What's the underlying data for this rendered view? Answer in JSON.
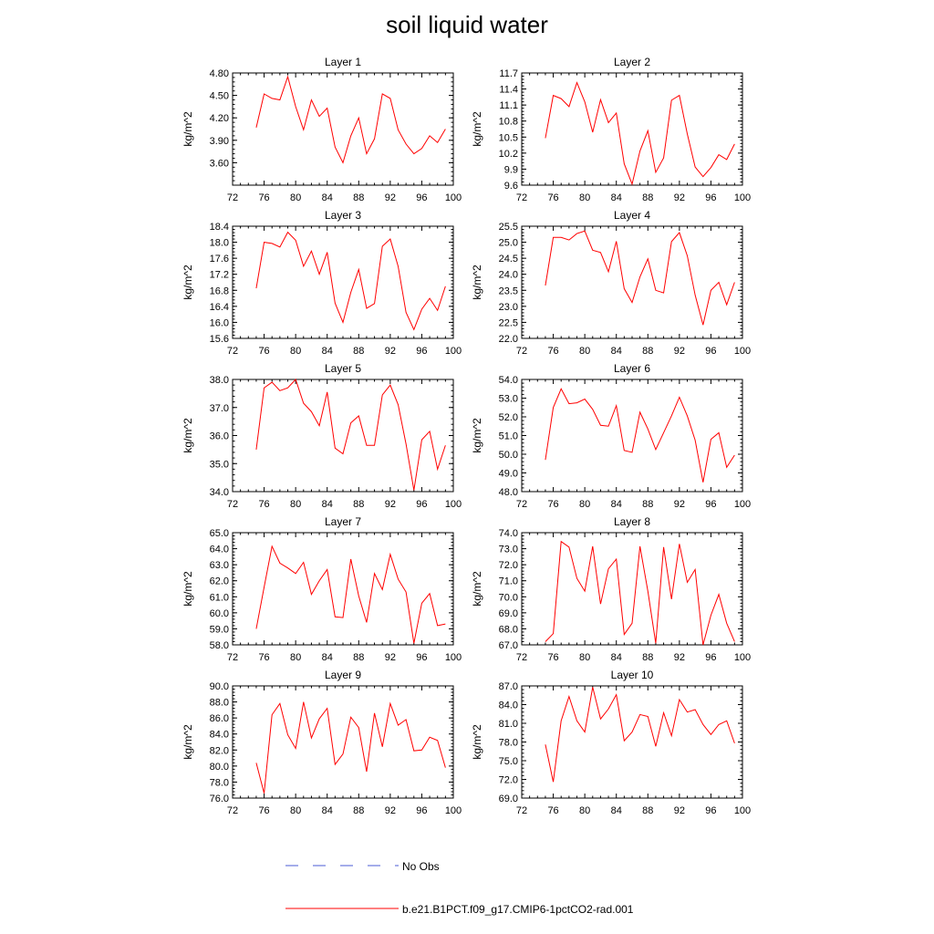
{
  "title": "soil liquid water",
  "legend": {
    "entries": [
      {
        "label": "No Obs",
        "color": "#4a5bd6",
        "style": "dashed"
      },
      {
        "label": "b.e21.B1PCT.f09_g17.CMIP6-1pctCO2-rad.001",
        "color": "#ff0000",
        "style": "solid"
      }
    ]
  },
  "colors": {
    "series": "#ff0000",
    "axis": "#000000"
  },
  "chart_data": [
    {
      "type": "line",
      "title": "Layer 1",
      "ylabel": "kg/m^2",
      "xlim": [
        72,
        100
      ],
      "xticks": [
        72,
        76,
        80,
        84,
        88,
        92,
        96,
        100
      ],
      "ylim": [
        3.3,
        4.8
      ],
      "yticks": [
        3.6,
        3.9,
        4.2,
        4.5,
        4.8
      ],
      "ydecimals": 2,
      "x": [
        75,
        76,
        77,
        78,
        79,
        80,
        81,
        82,
        83,
        84,
        85,
        86,
        87,
        88,
        89,
        90,
        91,
        92,
        93,
        94,
        95,
        96,
        97,
        98,
        99
      ],
      "series": [
        {
          "name": "b.e21.B1PCT.f09_g17.CMIP6-1pctCO2-rad.001",
          "values": [
            4.07,
            4.52,
            4.46,
            4.44,
            4.75,
            4.35,
            4.04,
            4.44,
            4.22,
            4.33,
            3.81,
            3.6,
            3.96,
            4.2,
            3.72,
            3.92,
            4.52,
            4.46,
            4.04,
            3.85,
            3.72,
            3.79,
            3.96,
            3.87,
            4.05
          ]
        }
      ]
    },
    {
      "type": "line",
      "title": "Layer 2",
      "ylabel": "kg/m^2",
      "xlim": [
        72,
        100
      ],
      "xticks": [
        72,
        76,
        80,
        84,
        88,
        92,
        96,
        100
      ],
      "ylim": [
        9.6,
        11.7
      ],
      "yticks": [
        9.6,
        9.9,
        10.2,
        10.5,
        10.8,
        11.1,
        11.4,
        11.7
      ],
      "ydecimals": 1,
      "x": [
        75,
        76,
        77,
        78,
        79,
        80,
        81,
        82,
        83,
        84,
        85,
        86,
        87,
        88,
        89,
        90,
        91,
        92,
        93,
        94,
        95,
        96,
        97,
        98,
        99
      ],
      "series": [
        {
          "name": "b.e21.B1PCT.f09_g17.CMIP6-1pctCO2-rad.001",
          "values": [
            10.48,
            11.28,
            11.22,
            11.07,
            11.52,
            11.16,
            10.59,
            11.2,
            10.77,
            10.95,
            10.0,
            9.62,
            10.24,
            10.62,
            9.84,
            10.11,
            11.19,
            11.28,
            10.56,
            9.94,
            9.76,
            9.93,
            10.17,
            10.08,
            10.37
          ]
        }
      ]
    },
    {
      "type": "line",
      "title": "Layer 3",
      "ylabel": "kg/m^2",
      "xlim": [
        72,
        100
      ],
      "xticks": [
        72,
        76,
        80,
        84,
        88,
        92,
        96,
        100
      ],
      "ylim": [
        15.6,
        18.4
      ],
      "yticks": [
        15.6,
        16.0,
        16.4,
        16.8,
        17.2,
        17.6,
        18.0,
        18.4
      ],
      "ydecimals": 1,
      "x": [
        75,
        76,
        77,
        78,
        79,
        80,
        81,
        82,
        83,
        84,
        85,
        86,
        87,
        88,
        89,
        90,
        91,
        92,
        93,
        94,
        95,
        96,
        97,
        98,
        99
      ],
      "series": [
        {
          "name": "b.e21.B1PCT.f09_g17.CMIP6-1pctCO2-rad.001",
          "values": [
            16.85,
            18.0,
            17.97,
            17.88,
            18.25,
            18.05,
            17.4,
            17.78,
            17.2,
            17.75,
            16.48,
            16.0,
            16.75,
            17.32,
            16.35,
            16.47,
            17.9,
            18.08,
            17.4,
            16.25,
            15.82,
            16.33,
            16.6,
            16.3,
            16.9
          ]
        }
      ]
    },
    {
      "type": "line",
      "title": "Layer 4",
      "ylabel": "kg/m^2",
      "xlim": [
        72,
        100
      ],
      "xticks": [
        72,
        76,
        80,
        84,
        88,
        92,
        96,
        100
      ],
      "ylim": [
        22.0,
        25.5
      ],
      "yticks": [
        22.0,
        22.5,
        23.0,
        23.5,
        24.0,
        24.5,
        25.0,
        25.5
      ],
      "ydecimals": 1,
      "x": [
        75,
        76,
        77,
        78,
        79,
        80,
        81,
        82,
        83,
        84,
        85,
        86,
        87,
        88,
        89,
        90,
        91,
        92,
        93,
        94,
        95,
        96,
        97,
        98,
        99
      ],
      "series": [
        {
          "name": "b.e21.B1PCT.f09_g17.CMIP6-1pctCO2-rad.001",
          "values": [
            23.65,
            25.15,
            25.15,
            25.07,
            25.27,
            25.35,
            24.75,
            24.68,
            24.08,
            25.03,
            23.55,
            23.12,
            23.92,
            24.48,
            23.5,
            23.42,
            25.02,
            25.3,
            24.58,
            23.35,
            22.42,
            23.5,
            23.75,
            23.05,
            23.75
          ]
        }
      ]
    },
    {
      "type": "line",
      "title": "Layer 5",
      "ylabel": "kg/m^2",
      "xlim": [
        72,
        100
      ],
      "xticks": [
        72,
        76,
        80,
        84,
        88,
        92,
        96,
        100
      ],
      "ylim": [
        34.0,
        38.0
      ],
      "yticks": [
        34.0,
        35.0,
        36.0,
        37.0,
        38.0
      ],
      "ydecimals": 1,
      "x": [
        75,
        76,
        77,
        78,
        79,
        80,
        81,
        82,
        83,
        84,
        85,
        86,
        87,
        88,
        89,
        90,
        91,
        92,
        93,
        94,
        95,
        96,
        97,
        98,
        99
      ],
      "series": [
        {
          "name": "b.e21.B1PCT.f09_g17.CMIP6-1pctCO2-rad.001",
          "values": [
            35.5,
            37.7,
            37.9,
            37.6,
            37.7,
            38.0,
            37.15,
            36.85,
            36.35,
            37.55,
            35.55,
            35.35,
            36.45,
            36.7,
            35.65,
            35.65,
            37.45,
            37.8,
            37.1,
            35.7,
            34.05,
            35.85,
            36.15,
            34.8,
            35.65
          ]
        }
      ]
    },
    {
      "type": "line",
      "title": "Layer 6",
      "ylabel": "kg/m^2",
      "xlim": [
        72,
        100
      ],
      "xticks": [
        72,
        76,
        80,
        84,
        88,
        92,
        96,
        100
      ],
      "ylim": [
        48.0,
        54.0
      ],
      "yticks": [
        48.0,
        49.0,
        50.0,
        51.0,
        52.0,
        53.0,
        54.0
      ],
      "ydecimals": 1,
      "x": [
        75,
        76,
        77,
        78,
        79,
        80,
        81,
        82,
        83,
        84,
        85,
        86,
        87,
        88,
        89,
        90,
        91,
        92,
        93,
        94,
        95,
        96,
        97,
        98,
        99
      ],
      "series": [
        {
          "name": "b.e21.B1PCT.f09_g17.CMIP6-1pctCO2-rad.001",
          "values": [
            49.7,
            52.5,
            53.5,
            52.7,
            52.75,
            52.95,
            52.4,
            51.55,
            51.5,
            52.6,
            50.2,
            50.1,
            52.25,
            51.35,
            50.25,
            51.15,
            52.05,
            53.05,
            52.05,
            50.75,
            48.5,
            50.8,
            51.15,
            49.3,
            49.95
          ]
        }
      ]
    },
    {
      "type": "line",
      "title": "Layer 7",
      "ylabel": "kg/m^2",
      "xlim": [
        72,
        100
      ],
      "xticks": [
        72,
        76,
        80,
        84,
        88,
        92,
        96,
        100
      ],
      "ylim": [
        58.0,
        65.0
      ],
      "yticks": [
        58.0,
        59.0,
        60.0,
        61.0,
        62.0,
        63.0,
        64.0,
        65.0
      ],
      "ydecimals": 1,
      "x": [
        75,
        76,
        77,
        78,
        79,
        80,
        81,
        82,
        83,
        84,
        85,
        86,
        87,
        88,
        89,
        90,
        91,
        92,
        93,
        94,
        95,
        96,
        97,
        98,
        99
      ],
      "series": [
        {
          "name": "b.e21.B1PCT.f09_g17.CMIP6-1pctCO2-rad.001",
          "values": [
            59.0,
            61.6,
            64.15,
            63.1,
            62.8,
            62.45,
            63.15,
            61.15,
            62.0,
            62.7,
            59.75,
            59.7,
            63.35,
            61.05,
            59.4,
            62.45,
            61.45,
            63.65,
            62.1,
            61.3,
            58.1,
            60.6,
            61.2,
            59.2,
            59.3
          ]
        }
      ]
    },
    {
      "type": "line",
      "title": "Layer 8",
      "ylabel": "kg/m^2",
      "xlim": [
        72,
        100
      ],
      "xticks": [
        72,
        76,
        80,
        84,
        88,
        92,
        96,
        100
      ],
      "ylim": [
        67.0,
        74.0
      ],
      "yticks": [
        67.0,
        68.0,
        69.0,
        70.0,
        71.0,
        72.0,
        73.0,
        74.0
      ],
      "ydecimals": 1,
      "x": [
        75,
        76,
        77,
        78,
        79,
        80,
        81,
        82,
        83,
        84,
        85,
        86,
        87,
        88,
        89,
        90,
        91,
        92,
        93,
        94,
        95,
        96,
        97,
        98,
        99
      ],
      "series": [
        {
          "name": "b.e21.B1PCT.f09_g17.CMIP6-1pctCO2-rad.001",
          "values": [
            67.2,
            67.7,
            73.45,
            73.1,
            71.15,
            70.35,
            73.15,
            69.55,
            71.75,
            72.35,
            67.65,
            68.35,
            73.15,
            70.35,
            67.1,
            73.1,
            69.85,
            73.3,
            70.9,
            71.7,
            67.0,
            68.85,
            70.15,
            68.35,
            67.2
          ]
        }
      ]
    },
    {
      "type": "line",
      "title": "Layer 9",
      "ylabel": "kg/m^2",
      "xlim": [
        72,
        100
      ],
      "xticks": [
        72,
        76,
        80,
        84,
        88,
        92,
        96,
        100
      ],
      "ylim": [
        76.0,
        90.0
      ],
      "yticks": [
        76.0,
        78.0,
        80.0,
        82.0,
        84.0,
        86.0,
        88.0,
        90.0
      ],
      "ydecimals": 1,
      "x": [
        75,
        76,
        77,
        78,
        79,
        80,
        81,
        82,
        83,
        84,
        85,
        86,
        87,
        88,
        89,
        90,
        91,
        92,
        93,
        94,
        95,
        96,
        97,
        98,
        99
      ],
      "series": [
        {
          "name": "b.e21.B1PCT.f09_g17.CMIP6-1pctCO2-rad.001",
          "values": [
            80.4,
            76.6,
            86.4,
            87.8,
            83.9,
            82.2,
            88.0,
            83.5,
            85.9,
            87.2,
            80.2,
            81.5,
            86.1,
            84.8,
            79.3,
            86.6,
            82.4,
            87.8,
            85.1,
            85.8,
            81.9,
            82.0,
            83.6,
            83.2,
            79.8
          ]
        }
      ]
    },
    {
      "type": "line",
      "title": "Layer 10",
      "ylabel": "kg/m^2",
      "xlim": [
        72,
        100
      ],
      "xticks": [
        72,
        76,
        80,
        84,
        88,
        92,
        96,
        100
      ],
      "ylim": [
        69.0,
        87.0
      ],
      "yticks": [
        69.0,
        72.0,
        75.0,
        78.0,
        81.0,
        84.0,
        87.0
      ],
      "ydecimals": 1,
      "x": [
        75,
        76,
        77,
        78,
        79,
        80,
        81,
        82,
        83,
        84,
        85,
        86,
        87,
        88,
        89,
        90,
        91,
        92,
        93,
        94,
        95,
        96,
        97,
        98,
        99
      ],
      "series": [
        {
          "name": "b.e21.B1PCT.f09_g17.CMIP6-1pctCO2-rad.001",
          "values": [
            77.6,
            71.6,
            81.4,
            85.3,
            81.4,
            79.6,
            86.8,
            81.7,
            83.3,
            85.6,
            78.2,
            79.6,
            82.4,
            82.1,
            77.3,
            82.7,
            79.0,
            84.8,
            82.8,
            83.2,
            80.8,
            79.2,
            80.8,
            81.4,
            77.8
          ]
        }
      ]
    }
  ]
}
